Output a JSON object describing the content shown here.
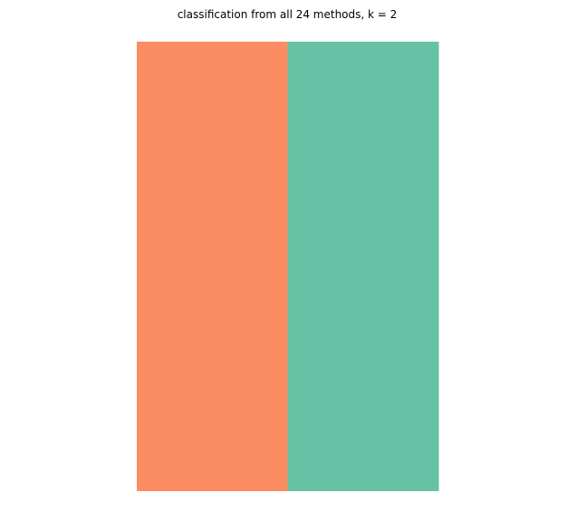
{
  "chart_data": {
    "type": "heatmap",
    "title": "classification from all 24 methods, k = 2",
    "xlabel": "",
    "ylabel": "",
    "grid": false,
    "legend": "none",
    "columns": [
      {
        "class": 1,
        "color": "#FC8D62"
      },
      {
        "class": 2,
        "color": "#66C2A5"
      }
    ],
    "rows": 1,
    "values": [
      [
        1,
        2
      ]
    ]
  }
}
